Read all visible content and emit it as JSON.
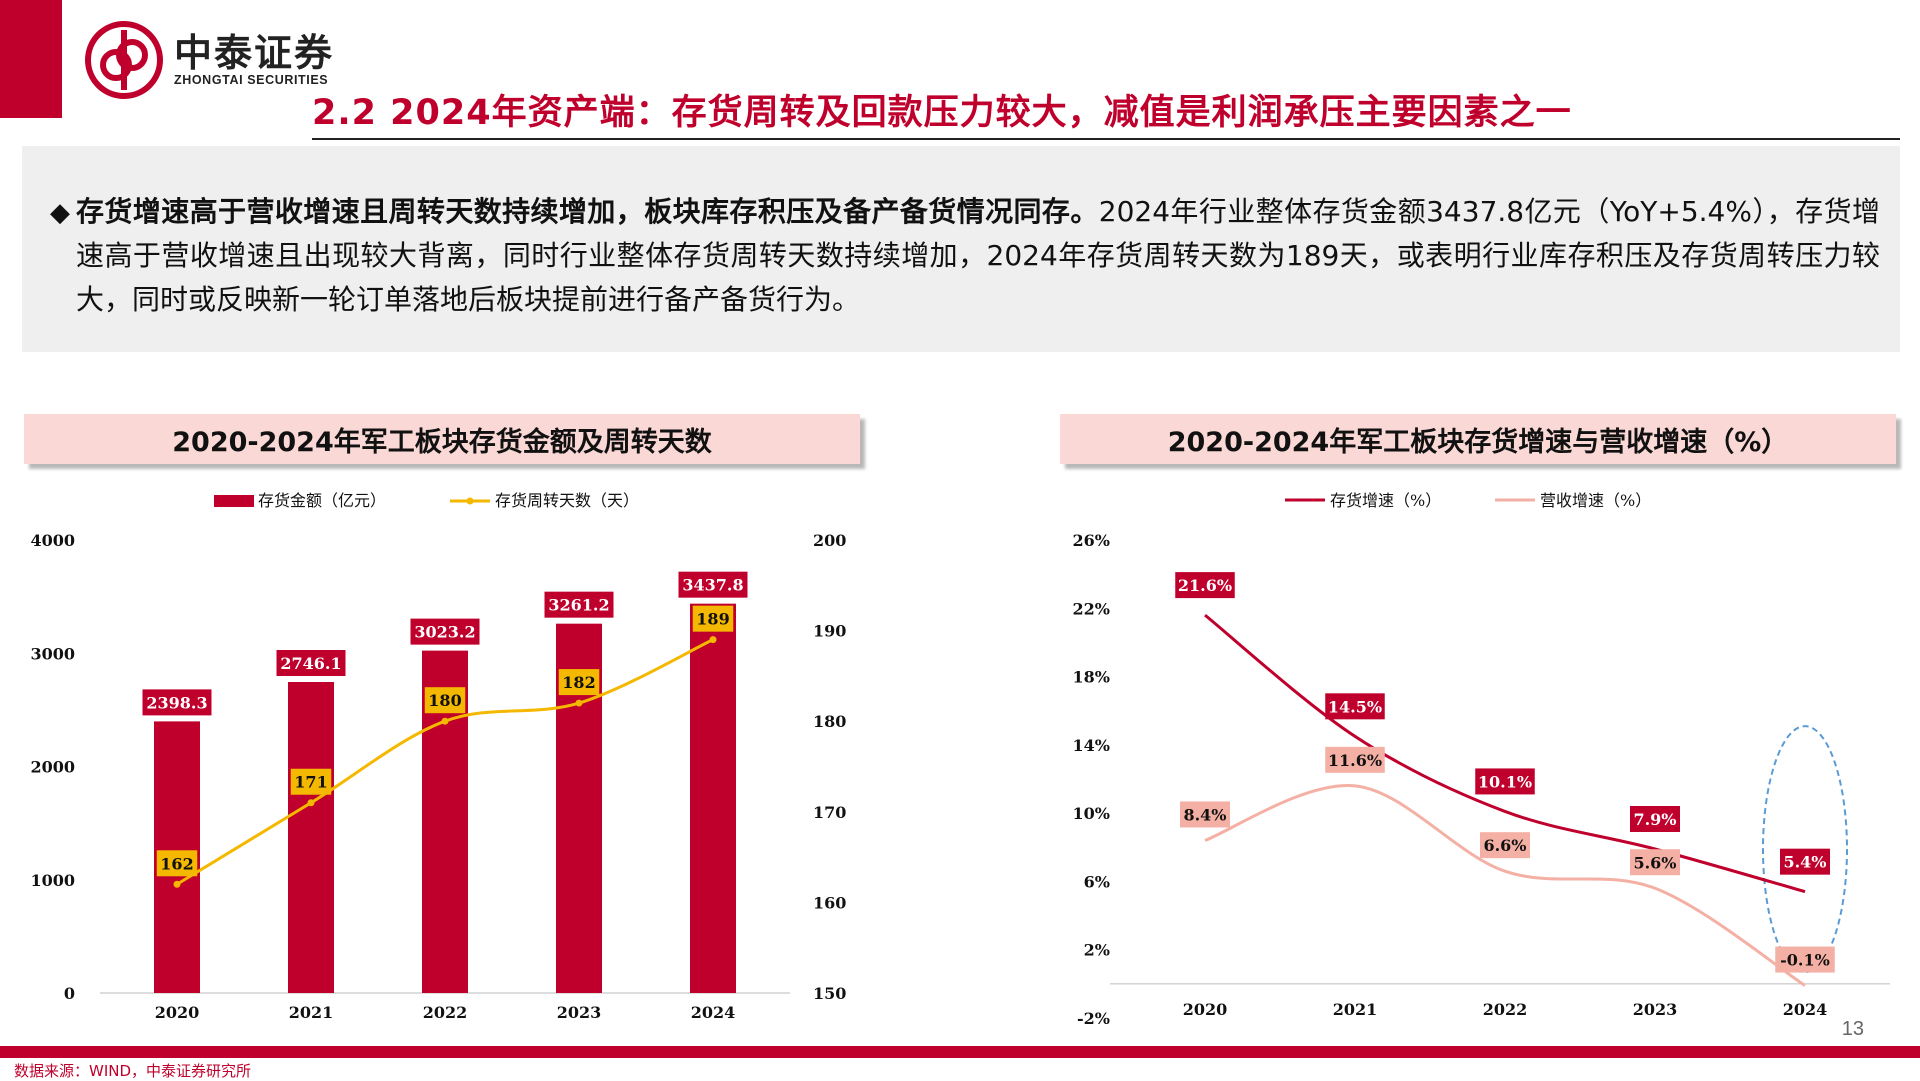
{
  "brand": {
    "name_cn": "中泰证券",
    "name_en": "ZHONGTAI SECURITIES",
    "color": "#c0002c"
  },
  "page_title": "2.2 2024年资产端：存货周转及回款压力较大，减值是利润承压主要因素之一",
  "summary": {
    "bullet": "◆",
    "lead": "存货增速高于营收增速且周转天数持续增加，板块库存积压及备产备货情况同存。",
    "body": "2024年行业整体存货金额3437.8亿元（YoY+5.4%），存货增速高于营收增速且出现较大背离，同时行业整体存货周转天数持续增加，2024年存货周转天数为189天，或表明行业库存积压及存货周转压力较大，同时或反映新一轮订单落地后板块提前进行备产备货行为。"
  },
  "charts": {
    "left_title": "2020-2024年军工板块存货金额及周转天数",
    "right_title": "2020-2024年军工板块存货增速与营收增速（%）"
  },
  "chart_data": [
    {
      "type": "bar",
      "title": "2020-2024年军工板块存货金额及周转天数",
      "categories": [
        "2020",
        "2021",
        "2022",
        "2023",
        "2024"
      ],
      "series": [
        {
          "name": "存货金额（亿元）",
          "type": "bar",
          "axis": "left",
          "values": [
            2398.3,
            2746.1,
            3023.2,
            3261.2,
            3437.8
          ],
          "labels": [
            "2398.3",
            "2746.1",
            "3023.2",
            "3261.2",
            "3437.8"
          ],
          "color": "#c0002c"
        },
        {
          "name": "存货周转天数（天）",
          "type": "line",
          "axis": "right",
          "values": [
            162,
            171,
            180,
            182,
            189
          ],
          "labels": [
            "162",
            "171",
            "180",
            "182",
            "189"
          ],
          "color": "#f5b800"
        }
      ],
      "ylim_left": [
        0,
        4000
      ],
      "ylim_right": [
        150,
        200
      ],
      "yticks_left": [
        "0",
        "1000",
        "2000",
        "3000",
        "4000"
      ],
      "yticks_right": [
        "150",
        "160",
        "170",
        "180",
        "190",
        "200"
      ],
      "legend_position": "top",
      "grid": false
    },
    {
      "type": "line",
      "title": "2020-2024年军工板块存货增速与营收增速（%）",
      "categories": [
        "2020",
        "2021",
        "2022",
        "2023",
        "2024"
      ],
      "series": [
        {
          "name": "存货增速（%）",
          "values": [
            21.6,
            14.5,
            10.1,
            7.9,
            5.4
          ],
          "labels": [
            "21.6%",
            "14.5%",
            "10.1%",
            "7.9%",
            "5.4%"
          ],
          "color": "#c0002c"
        },
        {
          "name": "营收增速（%）",
          "values": [
            8.4,
            11.6,
            6.6,
            5.6,
            -0.1
          ],
          "labels": [
            "8.4%",
            "11.6%",
            "6.6%",
            "5.6%",
            "-0.1%"
          ],
          "color": "#f4b0a4"
        }
      ],
      "ylim": [
        -2,
        26
      ],
      "yticks": [
        "-2%",
        "2%",
        "6%",
        "10%",
        "14%",
        "18%",
        "22%",
        "26%"
      ],
      "legend_position": "top",
      "grid": false,
      "highlight": "2024"
    }
  ],
  "page_number": "13",
  "source": "数据来源：WIND，中泰证券研究所"
}
